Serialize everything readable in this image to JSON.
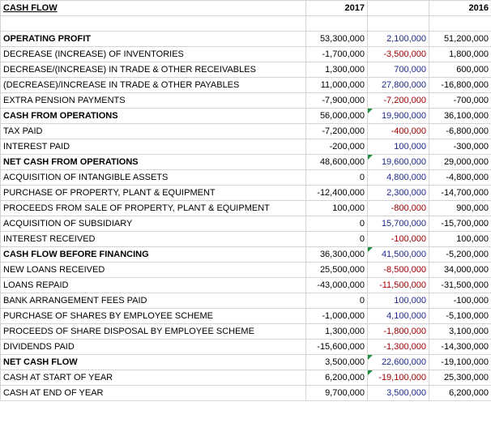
{
  "colors": {
    "positive": "#1f2a8a",
    "negative": "#a00000",
    "comment_marker": "#1e8e3e"
  },
  "sheet": {
    "title": "CASH FLOW",
    "year_2017": "2017",
    "year_2016": "2016",
    "rows": [
      {
        "label": "OPERATING PROFIT",
        "v2017": "53,300,000",
        "diff": "2,100,000",
        "v2016": "51,200,000"
      },
      {
        "label": "DECREASE (INCREASE) OF INVENTORIES",
        "v2017": "-1,700,000",
        "diff": "-3,500,000",
        "v2016": "1,800,000"
      },
      {
        "label": "DECREASE/(INCREASE) IN TRADE & OTHER RECEIVABLES",
        "v2017": "1,300,000",
        "diff": "700,000",
        "v2016": "600,000"
      },
      {
        "label": "(DECREASE)/INCREASE IN TRADE & OTHER PAYABLES",
        "v2017": "11,000,000",
        "diff": "27,800,000",
        "v2016": "-16,800,000"
      },
      {
        "label": "EXTRA PENSION PAYMENTS",
        "v2017": "-7,900,000",
        "diff": "-7,200,000",
        "v2016": "-700,000"
      },
      {
        "label": "CASH FROM OPERATIONS",
        "v2017": "56,000,000",
        "diff": "19,900,000",
        "v2016": "36,100,000"
      },
      {
        "label": "TAX PAID",
        "v2017": "-7,200,000",
        "diff": "-400,000",
        "v2016": "-6,800,000"
      },
      {
        "label": "INTEREST PAID",
        "v2017": "-200,000",
        "diff": "100,000",
        "v2016": "-300,000"
      },
      {
        "label": "NET CASH FROM OPERATIONS",
        "v2017": "48,600,000",
        "diff": "19,600,000",
        "v2016": "29,000,000"
      },
      {
        "label": "ACQUISITION OF INTANGIBLE ASSETS",
        "v2017": "0",
        "diff": "4,800,000",
        "v2016": "-4,800,000"
      },
      {
        "label": "PURCHASE OF PROPERTY, PLANT & EQUIPMENT",
        "v2017": "-12,400,000",
        "diff": "2,300,000",
        "v2016": "-14,700,000"
      },
      {
        "label": "PROCEEDS FROM SALE OF PROPERTY, PLANT & EQUIPMENT",
        "v2017": "100,000",
        "diff": "-800,000",
        "v2016": "900,000"
      },
      {
        "label": "ACQUISITION OF SUBSIDIARY",
        "v2017": "0",
        "diff": "15,700,000",
        "v2016": "-15,700,000"
      },
      {
        "label": "INTEREST RECEIVED",
        "v2017": "0",
        "diff": "-100,000",
        "v2016": "100,000"
      },
      {
        "label": "CASH FLOW BEFORE FINANCING",
        "v2017": "36,300,000",
        "diff": "41,500,000",
        "v2016": "-5,200,000"
      },
      {
        "label": "NEW LOANS RECEIVED",
        "v2017": "25,500,000",
        "diff": "-8,500,000",
        "v2016": "34,000,000"
      },
      {
        "label": "LOANS REPAID",
        "v2017": "-43,000,000",
        "diff": "-11,500,000",
        "v2016": "-31,500,000"
      },
      {
        "label": "BANK ARRANGEMENT FEES PAID",
        "v2017": "0",
        "diff": "100,000",
        "v2016": "-100,000"
      },
      {
        "label": "PURCHASE OF SHARES BY EMPLOYEE SCHEME",
        "v2017": "-1,000,000",
        "diff": "4,100,000",
        "v2016": "-5,100,000"
      },
      {
        "label": "PROCEEDS OF SHARE DISPOSAL BY EMPLOYEE SCHEME",
        "v2017": "1,300,000",
        "diff": "-1,800,000",
        "v2016": "3,100,000"
      },
      {
        "label": "DIVIDENDS PAID",
        "v2017": "-15,600,000",
        "diff": "-1,300,000",
        "v2016": "-14,300,000"
      },
      {
        "label": "NET CASH FLOW",
        "v2017": "3,500,000",
        "diff": "22,600,000",
        "v2016": "-19,100,000"
      },
      {
        "label": "CASH AT START OF YEAR",
        "v2017": "6,200,000",
        "diff": "-19,100,000",
        "v2016": "25,300,000"
      },
      {
        "label": "CASH AT END OF YEAR",
        "v2017": "9,700,000",
        "diff": "3,500,000",
        "v2016": "6,200,000"
      }
    ]
  }
}
